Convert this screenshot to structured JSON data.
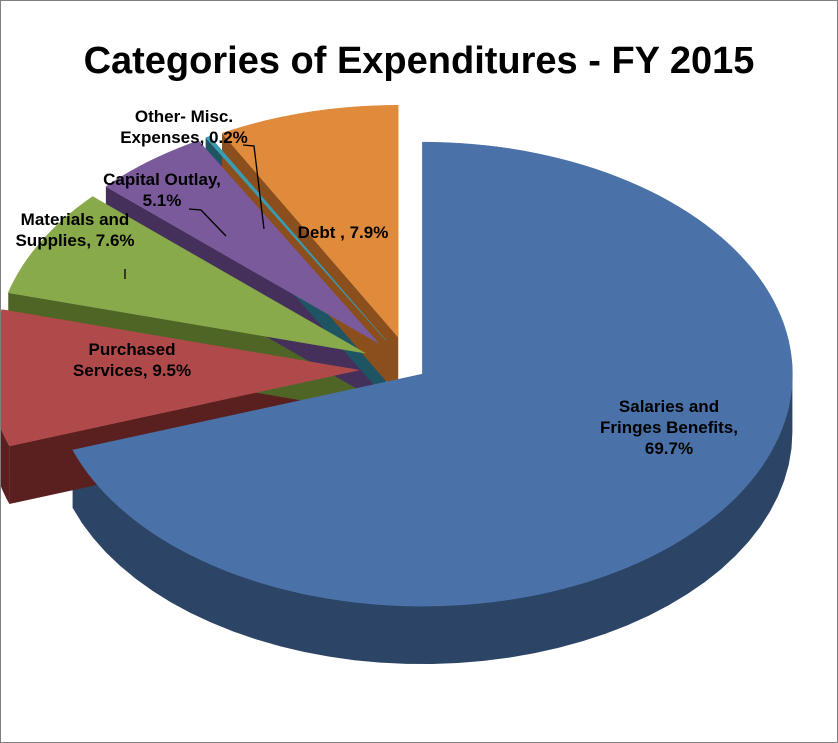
{
  "chart_data": {
    "type": "pie",
    "title": "Categories of Expenditures - FY 2015",
    "slices": [
      {
        "name": "Salaries and Fringes Benefits",
        "value": 69.7,
        "label_lines": [
          "Salaries and",
          "Fringes Benefits,",
          "69.7%"
        ],
        "color": "#4a72a8",
        "side": "#2c4466"
      },
      {
        "name": "Purchased Services",
        "value": 9.5,
        "label_lines": [
          "Purchased",
          "Services, 9.5%"
        ],
        "color": "#b04a4a",
        "side": "#5a1f1f"
      },
      {
        "name": "Materials and Supplies",
        "value": 7.6,
        "label_lines": [
          "Materials and",
          "Supplies, 7.6%"
        ],
        "color": "#88aa4a",
        "side": "#4f6526"
      },
      {
        "name": "Capital Outlay",
        "value": 5.1,
        "label_lines": [
          "Capital Outlay,",
          "5.1%"
        ],
        "color": "#7b5a9c",
        "side": "#44305a"
      },
      {
        "name": "Other- Misc. Expenses",
        "value": 0.2,
        "label_lines": [
          "Other- Misc.",
          "Expenses, 0.2%"
        ],
        "color": "#3c9bb0",
        "side": "#1f5563"
      },
      {
        "name": "Debt",
        "value": 7.9,
        "label_lines": [
          "Debt , 7.9%"
        ],
        "color": "#e08a3c",
        "side": "#8a4f1c"
      }
    ]
  }
}
